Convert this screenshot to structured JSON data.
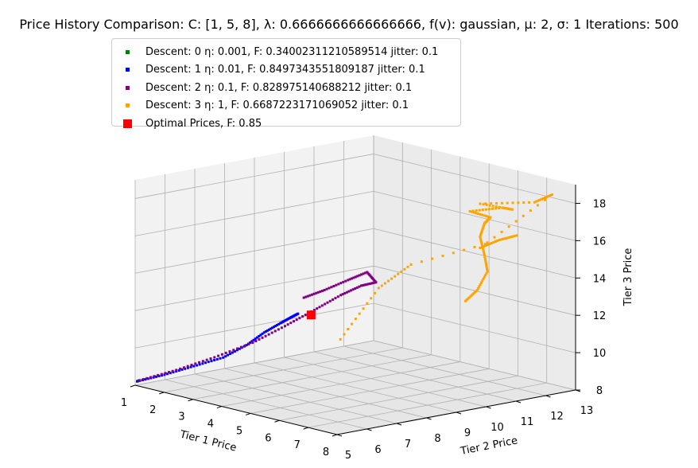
{
  "chart_data": {
    "type": "scatter",
    "title": "Price History Comparison: C: [1, 5, 8], λ: 0.6666666666666666, f(v): gaussian, μ: 2, σ: 1 Iterations: 500",
    "xlabel": "Tier 1 Price",
    "ylabel": "Tier 2 Price",
    "zlabel": "Tier 3 Price",
    "xlim": [
      1,
      8
    ],
    "ylim": [
      5,
      13
    ],
    "zlim": [
      8,
      19
    ],
    "xticks": [
      "1",
      "2",
      "3",
      "4",
      "5",
      "6",
      "7",
      "8"
    ],
    "yticks": [
      "5",
      "6",
      "7",
      "8",
      "9",
      "10",
      "11",
      "12",
      "13"
    ],
    "zticks": [
      "8",
      "10",
      "12",
      "14",
      "16",
      "18"
    ],
    "grid": true,
    "legend_position": "top-left",
    "series": [
      {
        "name": "Descent: 0 η: 0.001, F: 0.34002311210589514 jitter: 0.1",
        "color": "#008000",
        "points": [
          [
            1.02,
            5.05,
            8.2
          ],
          [
            1.05,
            5.1,
            8.25
          ]
        ]
      },
      {
        "name": "Descent: 1 η: 0.01, F: 0.8497343551809187 jitter: 0.1",
        "color": "#0000ff",
        "points": [
          [
            1.02,
            5.05,
            8.2
          ],
          [
            1.5,
            5.5,
            8.6
          ],
          [
            2.0,
            6.0,
            9.1
          ],
          [
            2.5,
            6.5,
            9.6
          ],
          [
            2.9,
            6.9,
            10.3
          ],
          [
            3.2,
            7.2,
            11.0
          ],
          [
            3.45,
            7.5,
            11.5
          ],
          [
            3.6,
            7.7,
            11.8
          ],
          [
            3.7,
            7.85,
            12.0
          ]
        ]
      },
      {
        "name": "Descent: 2 η: 0.1, F: 0.828975140688212 jitter: 0.1",
        "color": "#800080",
        "points": [
          [
            1.05,
            5.1,
            8.25
          ],
          [
            1.6,
            5.8,
            8.8
          ],
          [
            2.2,
            6.5,
            9.5
          ],
          [
            2.8,
            7.2,
            10.3
          ],
          [
            3.3,
            7.8,
            11.2
          ],
          [
            3.8,
            8.3,
            12.1
          ],
          [
            4.2,
            8.8,
            12.9
          ],
          [
            4.5,
            9.2,
            13.4
          ],
          [
            4.75,
            9.45,
            13.6
          ],
          [
            4.7,
            9.2,
            14.2
          ],
          [
            4.45,
            8.8,
            13.8
          ],
          [
            4.15,
            8.3,
            13.3
          ],
          [
            3.85,
            7.9,
            12.9
          ]
        ]
      },
      {
        "name": "Descent: 3 η: 1, F: 0.6687223171069052 jitter: 0.1",
        "color": "#ffa500",
        "points": [
          [
            6.25,
            11.0,
            12.7
          ],
          [
            6.45,
            11.2,
            13.3
          ],
          [
            6.6,
            11.4,
            14.3
          ],
          [
            6.6,
            11.3,
            15.2
          ],
          [
            6.55,
            11.2,
            16.2
          ],
          [
            6.6,
            11.3,
            16.9
          ],
          [
            6.65,
            11.45,
            17.2
          ],
          [
            6.3,
            11.1,
            17.5
          ],
          [
            6.8,
            11.7,
            17.7
          ],
          [
            6.95,
            11.9,
            17.6
          ],
          [
            6.45,
            11.3,
            17.9
          ],
          [
            7.3,
            12.3,
            18.0
          ],
          [
            7.55,
            12.65,
            18.4
          ],
          [
            6.55,
            11.2,
            15.6
          ],
          [
            6.8,
            11.6,
            16.0
          ],
          [
            7.0,
            12.0,
            16.2
          ],
          [
            5.5,
            9.9,
            14.7
          ],
          [
            5.1,
            9.2,
            13.5
          ],
          [
            4.6,
            8.4,
            10.8
          ]
        ]
      },
      {
        "name": "Optimal Prices, F: 0.85",
        "color": "#ff0000",
        "points": [
          [
            4.0,
            8.0,
            12.0
          ]
        ]
      }
    ]
  }
}
